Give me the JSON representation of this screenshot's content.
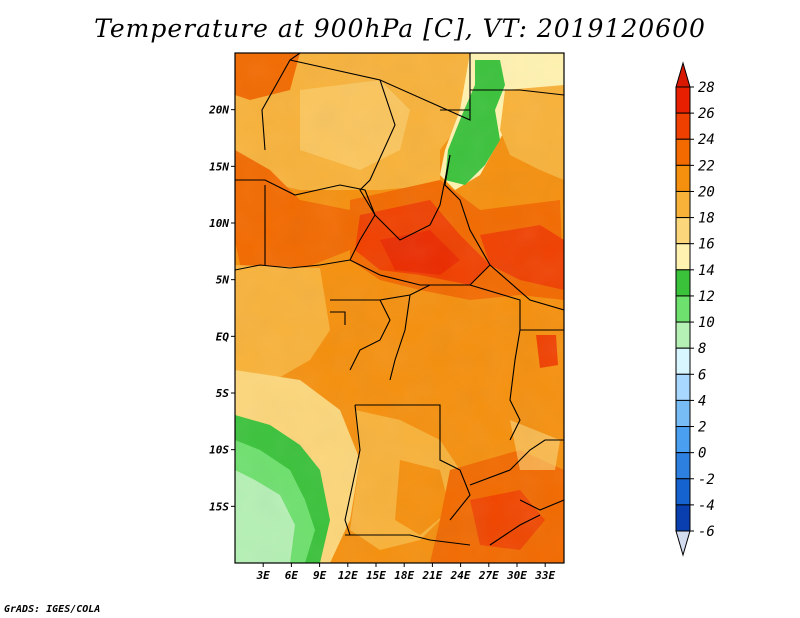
{
  "title": "Temperature at 900hPa [C], VT: 2019120600",
  "footer": "GrADS: IGES/COLA",
  "map": {
    "lon_range": [
      0,
      35
    ],
    "lat_range": [
      -20,
      25
    ],
    "lat_ticks": [
      "20N",
      "15N",
      "10N",
      "5N",
      "EQ",
      "5S",
      "10S",
      "15S"
    ],
    "lon_ticks": [
      "3E",
      "6E",
      "9E",
      "12E",
      "15E",
      "18E",
      "21E",
      "24E",
      "27E",
      "30E",
      "33E"
    ]
  },
  "colorbar": {
    "labels": [
      "28",
      "26",
      "24",
      "22",
      "20",
      "18",
      "16",
      "14",
      "12",
      "10",
      "8",
      "6",
      "4",
      "2",
      "0",
      "-2",
      "-4",
      "-6"
    ],
    "colors": [
      "#e81f00",
      "#f04000",
      "#f26a00",
      "#f5900e",
      "#f8b23a",
      "#fcd67a",
      "#fff2b0",
      "#3bc23b",
      "#6de06d",
      "#b5f0b5",
      "#d8f6ff",
      "#a8d8ff",
      "#78bcf5",
      "#4a9ff0",
      "#2d7fe0",
      "#1563d0",
      "#0a3fb0",
      "#071a80"
    ],
    "top_color": "#d81800",
    "bottom_color": "#d4dcf0"
  }
}
